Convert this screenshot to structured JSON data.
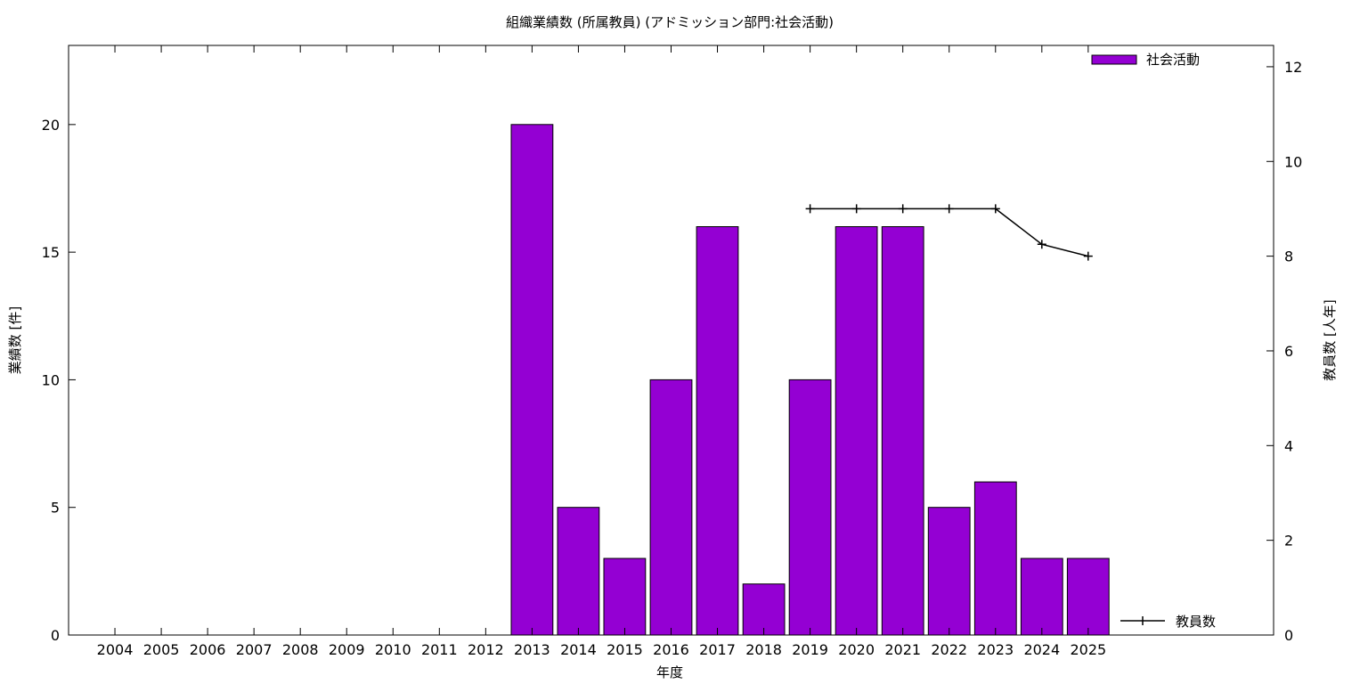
{
  "chart_data": {
    "type": "bar",
    "title": "組織業績数 (所属教員) (アドミッション部門:社会活動)",
    "xlabel": "年度",
    "ylabel": "業績数 [件]",
    "y2label": "教員数 [人年]",
    "categories": [
      "2004",
      "2005",
      "2006",
      "2007",
      "2008",
      "2009",
      "2010",
      "2011",
      "2012",
      "2013",
      "2014",
      "2015",
      "2016",
      "2017",
      "2018",
      "2019",
      "2020",
      "2021",
      "2022",
      "2023",
      "2024",
      "2025"
    ],
    "series": [
      {
        "name": "社会活動",
        "type": "bar",
        "axis": "left",
        "color": "#9400d3",
        "values": [
          null,
          null,
          null,
          null,
          null,
          null,
          null,
          null,
          null,
          20,
          5,
          3,
          10,
          16,
          2,
          10,
          16,
          16,
          5,
          6,
          3,
          3
        ]
      },
      {
        "name": "教員数",
        "type": "line",
        "axis": "right",
        "color": "#000000",
        "values": [
          null,
          null,
          null,
          null,
          null,
          null,
          null,
          null,
          null,
          null,
          null,
          null,
          null,
          null,
          null,
          9,
          9,
          9,
          9,
          9,
          8.25,
          8
        ]
      }
    ],
    "ylim": [
      0,
      23.1
    ],
    "yticks": [
      0,
      5,
      10,
      15,
      20
    ],
    "y2lim": [
      0,
      12.45
    ],
    "y2ticks": [
      0,
      2,
      4,
      6,
      8,
      10,
      12
    ],
    "legend_position": "top-right",
    "grid": false
  }
}
